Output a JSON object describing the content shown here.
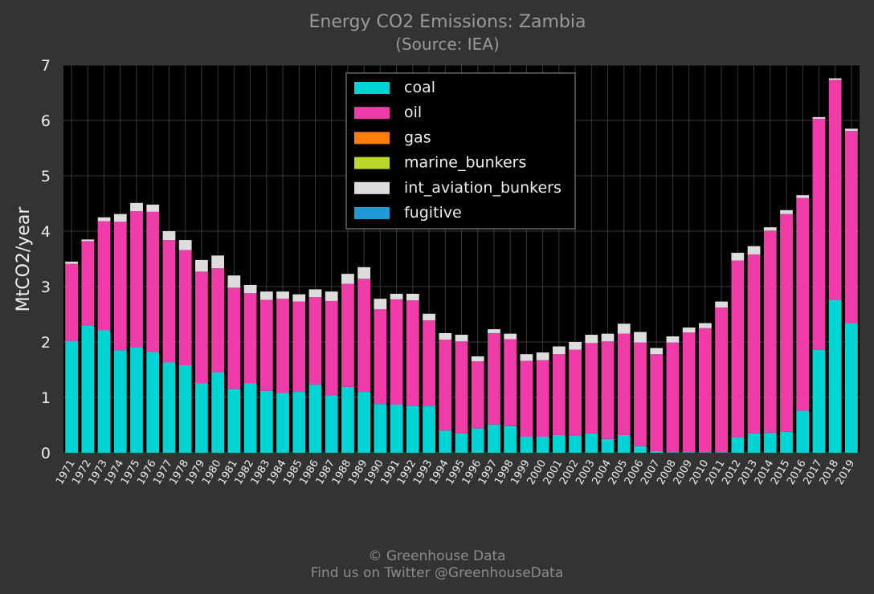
{
  "footer": {
    "copyright": "© Greenhouse Data",
    "twitter": "Find us on Twitter @GreenhouseData"
  },
  "chart_data": {
    "type": "bar",
    "stacked": true,
    "title": "Energy CO2 Emissions: Zambia",
    "subtitle": "(Source: IEA)",
    "xlabel": "",
    "ylabel": "MtCO2/year",
    "ylim": [
      0,
      7
    ],
    "yticks": [
      0,
      1,
      2,
      3,
      4,
      5,
      6,
      7
    ],
    "grid": true,
    "legend_position": "top-center",
    "categories": [
      "1971",
      "1972",
      "1973",
      "1974",
      "1975",
      "1976",
      "1977",
      "1978",
      "1979",
      "1980",
      "1981",
      "1982",
      "1983",
      "1984",
      "1985",
      "1986",
      "1987",
      "1988",
      "1989",
      "1990",
      "1991",
      "1992",
      "1993",
      "1994",
      "1995",
      "1996",
      "1997",
      "1998",
      "1999",
      "2000",
      "2001",
      "2002",
      "2003",
      "2004",
      "2005",
      "2006",
      "2007",
      "2008",
      "2009",
      "2010",
      "2011",
      "2012",
      "2013",
      "2014",
      "2015",
      "2016",
      "2017",
      "2018",
      "2019"
    ],
    "series": [
      {
        "name": "coal",
        "color": "#00d4d4",
        "values": [
          2.02,
          2.29,
          2.21,
          1.85,
          1.91,
          1.82,
          1.63,
          1.58,
          1.26,
          1.45,
          1.15,
          1.26,
          1.12,
          1.08,
          1.1,
          1.23,
          1.04,
          1.19,
          1.1,
          0.88,
          0.87,
          0.85,
          0.84,
          0.4,
          0.35,
          0.44,
          0.51,
          0.48,
          0.29,
          0.29,
          0.32,
          0.31,
          0.35,
          0.25,
          0.32,
          0.12,
          0.03,
          0.01,
          0.01,
          0.01,
          0.01,
          0.28,
          0.35,
          0.36,
          0.38,
          0.76,
          1.86,
          2.76,
          2.34
        ]
      },
      {
        "name": "oil",
        "color": "#f03ca8",
        "values": [
          1.39,
          1.53,
          1.97,
          2.32,
          2.45,
          2.53,
          2.21,
          2.08,
          2.01,
          1.88,
          1.83,
          1.62,
          1.64,
          1.7,
          1.63,
          1.58,
          1.7,
          1.86,
          2.04,
          1.71,
          1.9,
          1.9,
          1.55,
          1.64,
          1.66,
          1.21,
          1.65,
          1.57,
          1.37,
          1.38,
          1.46,
          1.55,
          1.63,
          1.76,
          1.83,
          1.87,
          1.75,
          1.98,
          2.16,
          2.24,
          2.61,
          3.19,
          3.23,
          3.65,
          3.93,
          3.84,
          4.17,
          3.97,
          3.47
        ]
      },
      {
        "name": "gas",
        "color": "#ff7f0e",
        "values": [
          0,
          0,
          0,
          0,
          0,
          0,
          0,
          0,
          0,
          0,
          0,
          0,
          0,
          0,
          0,
          0,
          0,
          0,
          0,
          0,
          0,
          0,
          0,
          0,
          0,
          0,
          0,
          0,
          0,
          0,
          0,
          0,
          0,
          0,
          0,
          0,
          0,
          0,
          0,
          0,
          0,
          0,
          0,
          0,
          0,
          0,
          0,
          0,
          0
        ]
      },
      {
        "name": "marine_bunkers",
        "color": "#bcd62a",
        "values": [
          0,
          0,
          0,
          0,
          0,
          0,
          0,
          0,
          0,
          0,
          0,
          0,
          0,
          0,
          0,
          0,
          0,
          0,
          0,
          0,
          0,
          0,
          0,
          0,
          0,
          0,
          0,
          0,
          0,
          0,
          0,
          0,
          0,
          0,
          0,
          0,
          0,
          0,
          0,
          0,
          0,
          0,
          0,
          0,
          0,
          0,
          0,
          0,
          0
        ]
      },
      {
        "name": "int_aviation_bunkers",
        "color": "#dddddd",
        "values": [
          0.04,
          0.03,
          0.07,
          0.14,
          0.15,
          0.13,
          0.16,
          0.18,
          0.21,
          0.23,
          0.22,
          0.15,
          0.15,
          0.13,
          0.13,
          0.14,
          0.17,
          0.18,
          0.21,
          0.19,
          0.1,
          0.12,
          0.12,
          0.12,
          0.12,
          0.09,
          0.07,
          0.1,
          0.12,
          0.14,
          0.14,
          0.14,
          0.15,
          0.14,
          0.18,
          0.19,
          0.11,
          0.11,
          0.09,
          0.09,
          0.11,
          0.14,
          0.15,
          0.06,
          0.07,
          0.05,
          0.03,
          0.03,
          0.04
        ]
      },
      {
        "name": "fugitive",
        "color": "#1f9ad6",
        "values": [
          0,
          0,
          0,
          0,
          0,
          0,
          0,
          0,
          0,
          0,
          0,
          0,
          0,
          0,
          0,
          0,
          0,
          0,
          0,
          0,
          0,
          0,
          0,
          0,
          0,
          0,
          0,
          0,
          0,
          0,
          0,
          0,
          0,
          0,
          0,
          0,
          0,
          0,
          0,
          0,
          0,
          0,
          0,
          0,
          0,
          0,
          0,
          0,
          0
        ]
      }
    ]
  }
}
